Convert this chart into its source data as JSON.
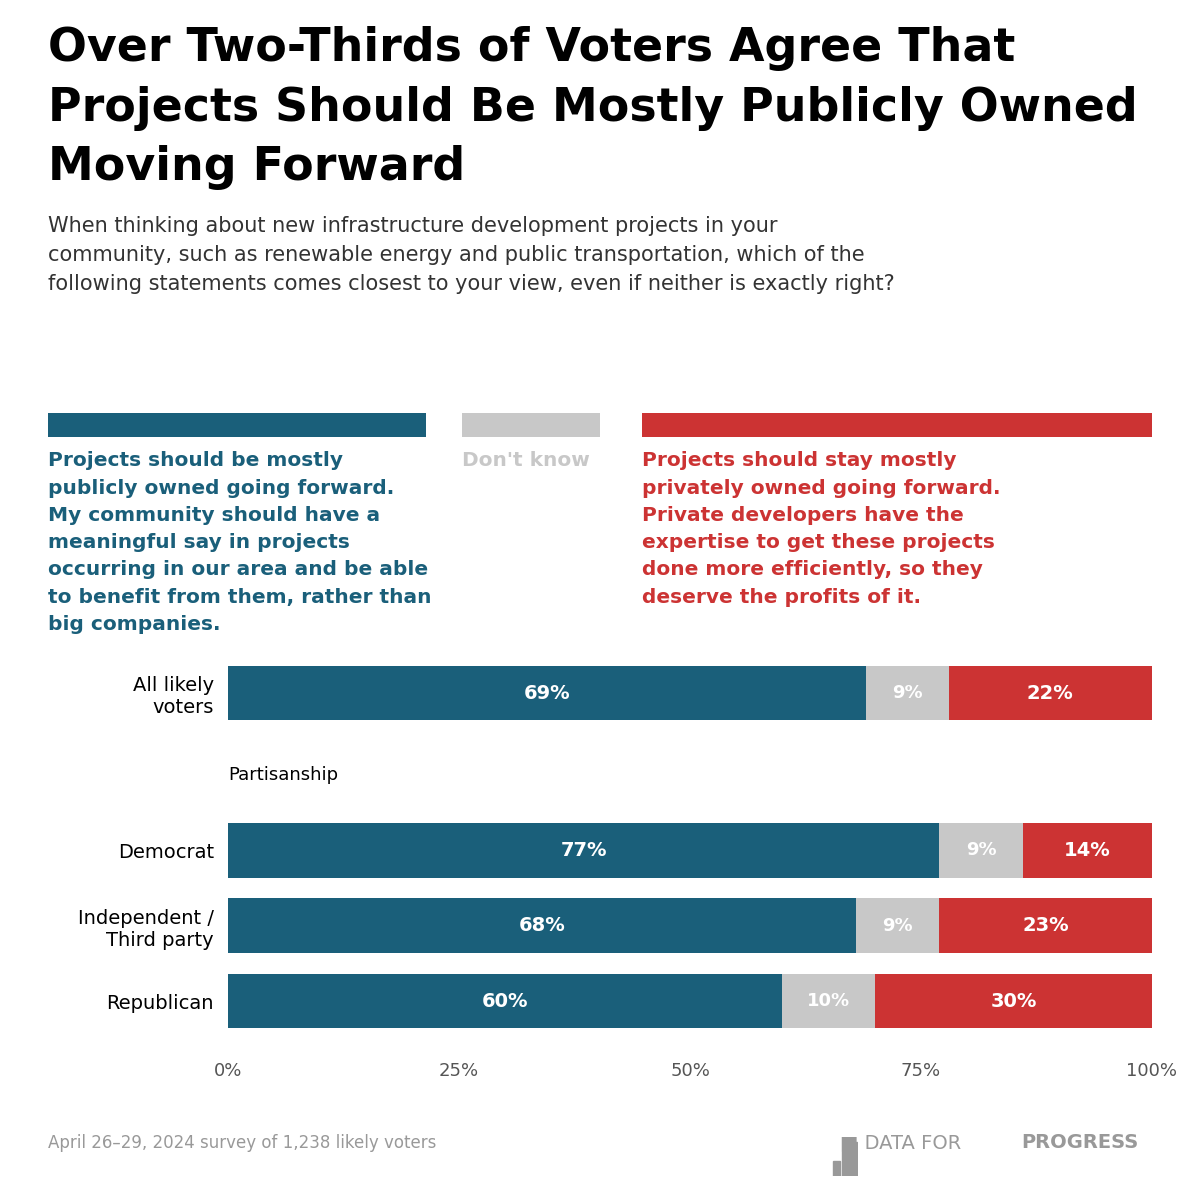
{
  "title_line1": "Over Two-Thirds of Voters Agree That",
  "title_line2": "Projects Should Be Mostly Publicly Owned",
  "title_line3": "Moving Forward",
  "subtitle": "When thinking about new infrastructure development projects in your\ncommunity, such as renewable energy and public transportation, which of the\nfollowing statements comes closest to your view, even if neither is exactly right?",
  "left_label_text": "Projects should be mostly\npublicly owned going forward.\nMy community should have a\nmeaningful say in projects\noccurring in our area and be able\nto benefit from them, rather than\nbig companies.",
  "middle_label_text": "Don't know",
  "right_label_text": "Projects should stay mostly\nprivately owned going forward.\nPrivate developers have the\nexpertise to get these projects\ndone more efficiently, so they\ndeserve the profits of it.",
  "color_blue": "#1a5f7a",
  "color_gray": "#c8c8c8",
  "color_red": "#cc3333",
  "categories": [
    "All likely\nvoters",
    "Democrat",
    "Independent /\nThird party",
    "Republican"
  ],
  "values_blue": [
    69,
    77,
    68,
    60
  ],
  "values_gray": [
    9,
    9,
    9,
    10
  ],
  "values_red": [
    22,
    14,
    23,
    30
  ],
  "labels_blue": [
    "69%",
    "77%",
    "68%",
    "60%"
  ],
  "labels_gray": [
    "9%",
    "9%",
    "9%",
    "10%"
  ],
  "labels_red": [
    "22%",
    "14%",
    "23%",
    "30%"
  ],
  "partisanship_label": "Partisanship",
  "footnote": "April 26–29, 2024 survey of 1,238 likely voters",
  "bg_color": "#ffffff",
  "bar_height": 0.52,
  "xtick_labels": [
    "0%",
    "25%",
    "50%",
    "75%",
    "100%"
  ],
  "xtick_values": [
    0,
    25,
    50,
    75,
    100
  ]
}
